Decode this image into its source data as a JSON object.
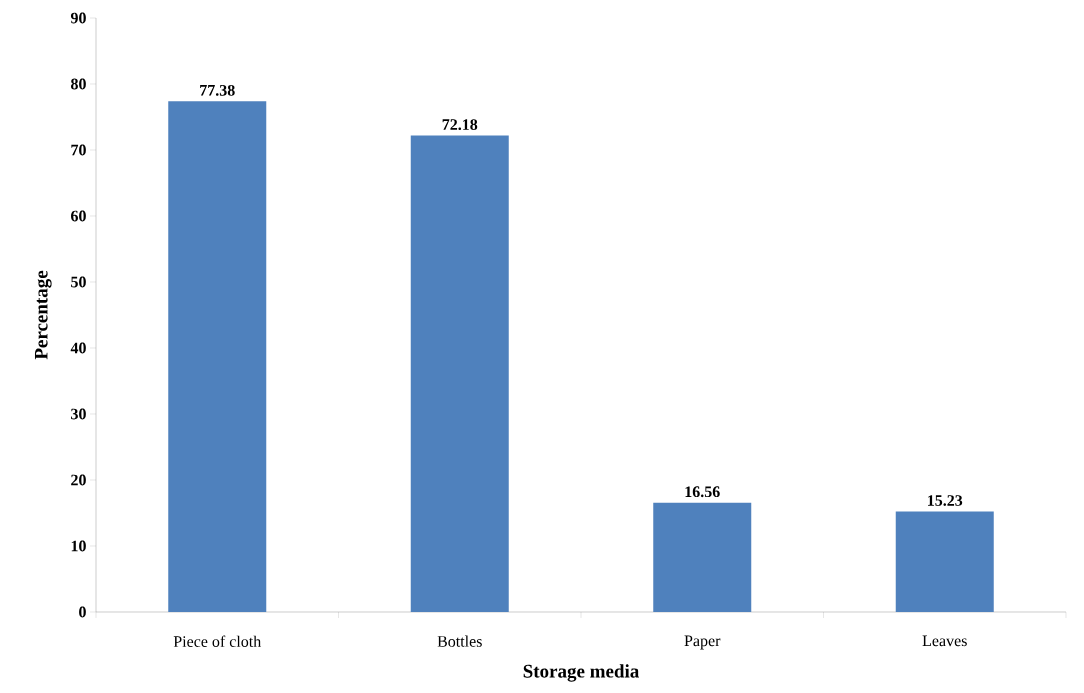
{
  "chart_data": {
    "type": "bar",
    "xlabel": "Storage media",
    "ylabel": "Percentage",
    "categories": [
      "Piece of cloth",
      "Bottles",
      "Paper",
      "Leaves"
    ],
    "values": [
      77.38,
      72.18,
      16.56,
      15.23
    ],
    "color": "#4f81bd",
    "ylim": [
      0,
      90
    ],
    "yticks": [
      0,
      10,
      20,
      30,
      40,
      50,
      60,
      70,
      80,
      90
    ],
    "data_labels": true
  }
}
